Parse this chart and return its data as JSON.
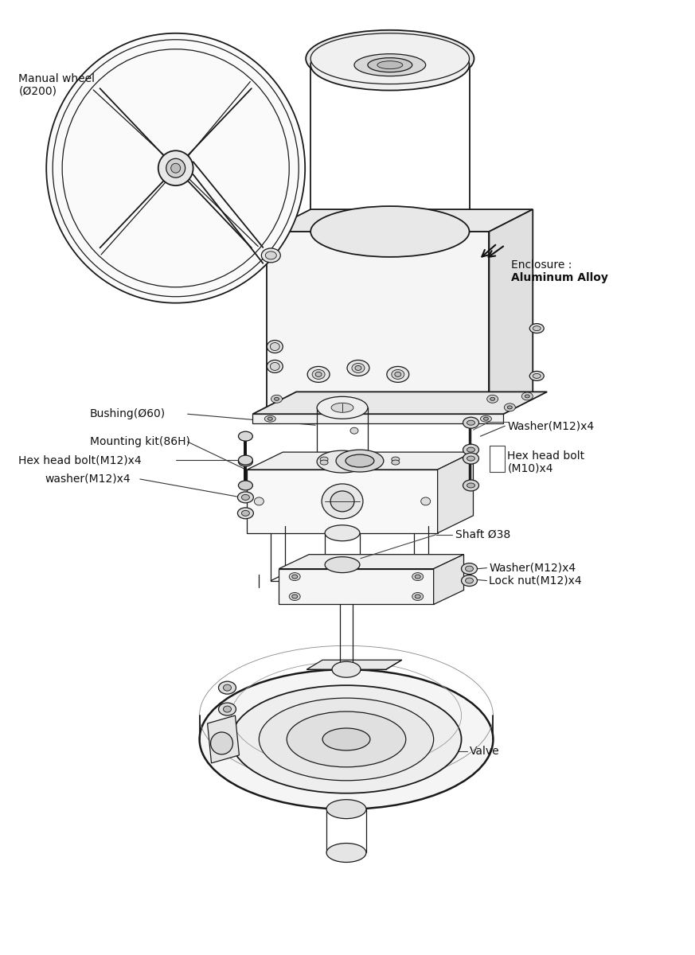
{
  "bg_color": "#ffffff",
  "lc": "#1a1a1a",
  "labels": {
    "manual_wheel": "Manual wheel\n(Ø200)",
    "enclosure_line1": "Enclosure :",
    "enclosure_line2": "Aluminum Alloy",
    "bushing": "Bushing(Ø60)",
    "mounting_kit": "Mounting kit(86H)",
    "washer_m12_top": "Washer(M12)x4",
    "hex_bolt_m10_line1": "Hex head bolt",
    "hex_bolt_m10_line2": "(M10)x4",
    "hex_bolt_m12": "Hex head bolt(M12)x4",
    "washer_m12_mid": "washer(M12)x4",
    "shaft": "Shaft Ø38",
    "washer_m12_bot": "Washer(M12)x4",
    "lock_nut": "Lock nut(M12)x4",
    "valve": "Valve"
  }
}
